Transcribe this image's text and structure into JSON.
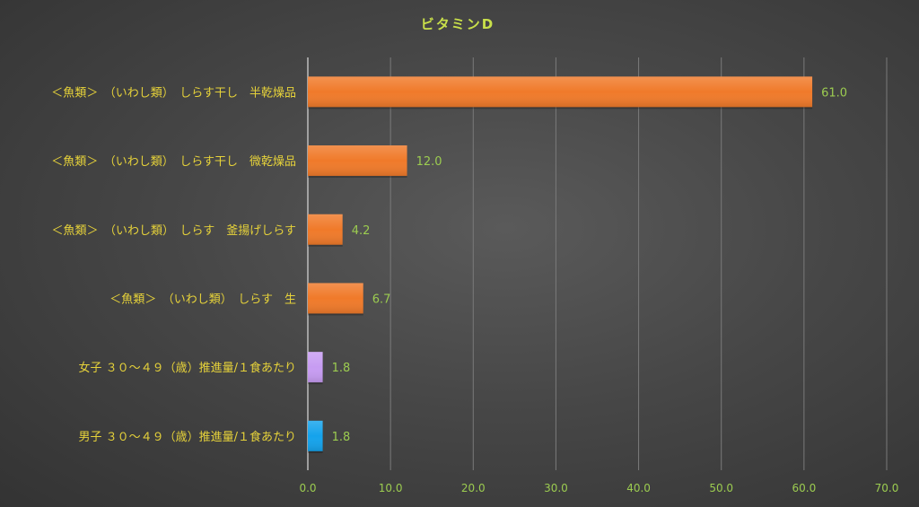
{
  "chart_data": {
    "type": "bar",
    "orientation": "horizontal",
    "title": "ビタミンD",
    "categories": [
      "＜魚類＞　（いわし類）　しらす干し　半乾燥品",
      "＜魚類＞　（いわし類）　しらす干し　微乾燥品",
      "＜魚類＞　（いわし類）　しらす　釜揚げしらす",
      "＜魚類＞　（いわし類）　しらす　生",
      "女子 ３０～４９（歳）推進量/１食あたり",
      "男子 ３０～４９（歳）推進量/１食あたり"
    ],
    "values": [
      61.0,
      12.0,
      4.2,
      6.7,
      1.8,
      1.8
    ],
    "value_labels": [
      "61.0",
      "12.0",
      "4.2",
      "6.7",
      "1.8",
      "1.8"
    ],
    "bar_colors": [
      "#f07a2a",
      "#f07a2a",
      "#f07a2a",
      "#f07a2a",
      "#c79cf2",
      "#14a3ec"
    ],
    "xlim": [
      0,
      70
    ],
    "ticks": [
      0,
      10,
      20,
      30,
      40,
      50,
      60,
      70
    ],
    "tick_labels": [
      "0.0",
      "10.0",
      "20.0",
      "30.0",
      "40.0",
      "50.0",
      "60.0",
      "70.0"
    ],
    "grid": true,
    "xlabel": "",
    "ylabel": ""
  }
}
